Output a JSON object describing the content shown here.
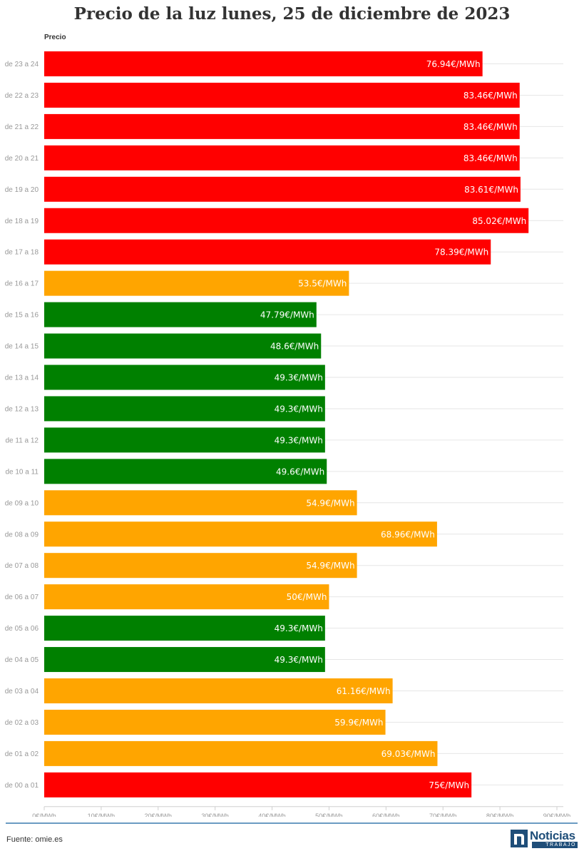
{
  "chart_data": {
    "type": "bar",
    "orientation": "horizontal",
    "title": "Precio de la luz lunes, 25 de diciembre de 2023",
    "series_label": "Precio",
    "categories": [
      "de 23 a 24",
      "de 22 a 23",
      "de 21 a 22",
      "de 20 a 21",
      "de 19 a 20",
      "de 18 a 19",
      "de 17 a 18",
      "de 16 a 17",
      "de 15 a 16",
      "de 14 a 15",
      "de 13 a 14",
      "de 12 a 13",
      "de 11 a 12",
      "de 10 a 11",
      "de 09 a 10",
      "de 08 a 09",
      "de 07 a 08",
      "de 06 a 07",
      "de 05 a 06",
      "de 04 a 05",
      "de 03 a 04",
      "de 02 a 03",
      "de 01 a 02",
      "de 00 a 01"
    ],
    "values": [
      76.94,
      83.46,
      83.46,
      83.46,
      83.61,
      85.02,
      78.39,
      53.5,
      47.79,
      48.6,
      49.3,
      49.3,
      49.3,
      49.6,
      54.9,
      68.96,
      54.9,
      50,
      49.3,
      49.3,
      61.16,
      59.9,
      69.03,
      75
    ],
    "value_labels": [
      "76.94€/MWh",
      "83.46€/MWh",
      "83.46€/MWh",
      "83.46€/MWh",
      "83.61€/MWh",
      "85.02€/MWh",
      "78.39€/MWh",
      "53.5€/MWh",
      "47.79€/MWh",
      "48.6€/MWh",
      "49.3€/MWh",
      "49.3€/MWh",
      "49.3€/MWh",
      "49.6€/MWh",
      "54.9€/MWh",
      "68.96€/MWh",
      "54.9€/MWh",
      "50€/MWh",
      "49.3€/MWh",
      "49.3€/MWh",
      "61.16€/MWh",
      "59.9€/MWh",
      "69.03€/MWh",
      "75€/MWh"
    ],
    "bar_colors": [
      "#ff0000",
      "#ff0000",
      "#ff0000",
      "#ff0000",
      "#ff0000",
      "#ff0000",
      "#ff0000",
      "#ffa500",
      "#008000",
      "#008000",
      "#008000",
      "#008000",
      "#008000",
      "#008000",
      "#ffa500",
      "#ffa500",
      "#ffa500",
      "#ffa500",
      "#008000",
      "#008000",
      "#ffa500",
      "#ffa500",
      "#ffa500",
      "#ff0000"
    ],
    "xlim": [
      0,
      90
    ],
    "xticks": [
      0,
      10,
      20,
      30,
      40,
      50,
      60,
      70,
      80,
      90
    ],
    "xtick_labels": [
      "0€/MWh",
      "10€/MWh",
      "20€/MWh",
      "30€/MWh",
      "40€/MWh",
      "50€/MWh",
      "60€/MWh",
      "70€/MWh",
      "80€/MWh",
      "90€/MWh"
    ],
    "grid": true
  },
  "footer": {
    "source": "Fuente: omie.es",
    "logo_word": "Noticias",
    "logo_sub": "TRABAJO"
  },
  "colors": {
    "high": "#ff0000",
    "medium": "#ffa500",
    "low": "#008000",
    "footer_line": "#6b9bc3",
    "brand": "#1f4e79"
  }
}
